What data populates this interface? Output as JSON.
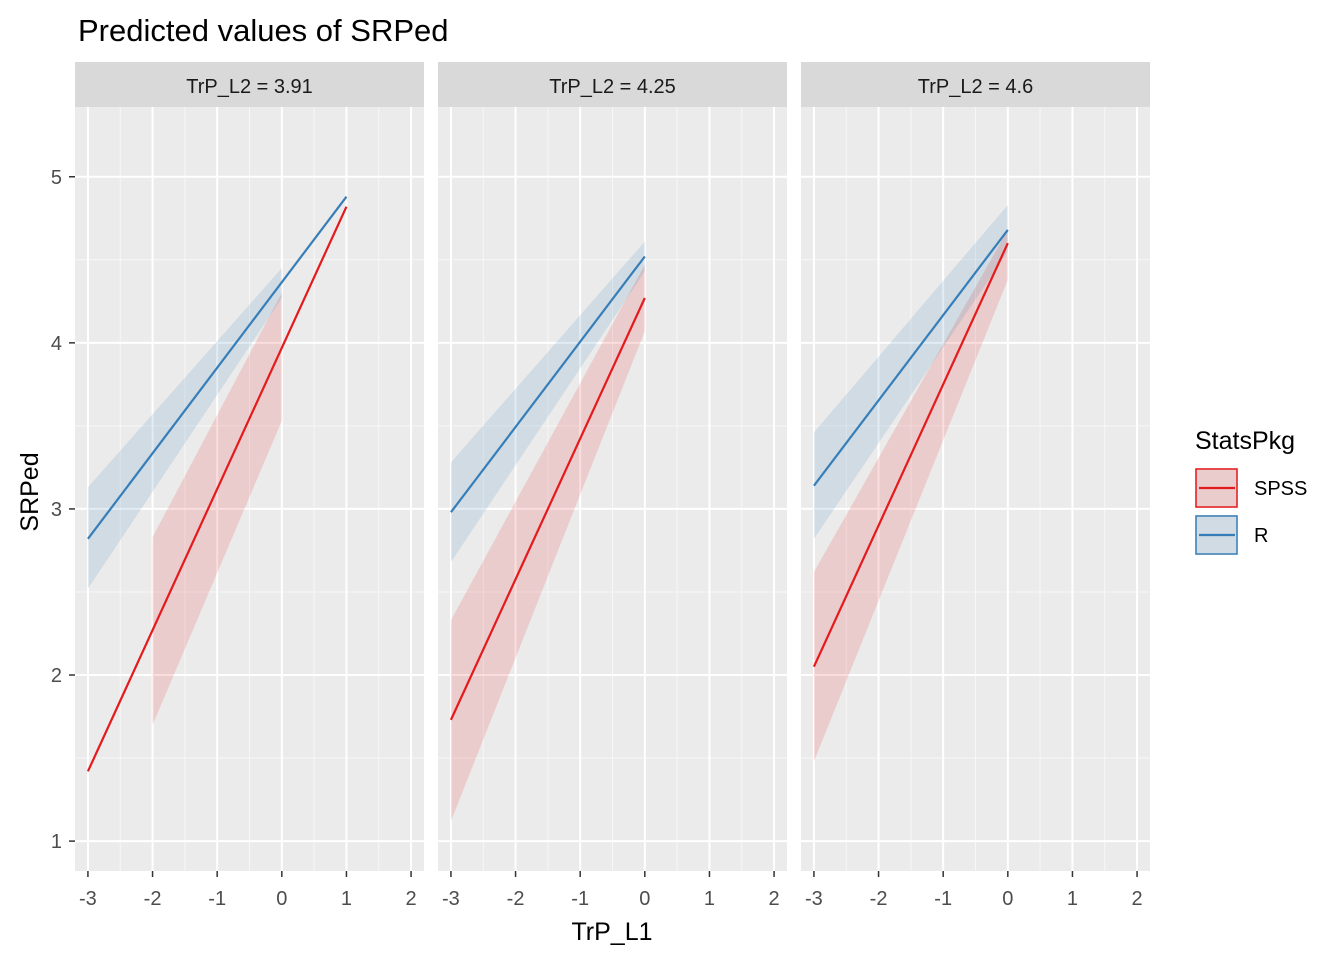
{
  "chart_data": {
    "type": "line",
    "title": "Predicted values of SRPed",
    "xlabel": "TrP_L1",
    "ylabel": "SRPed",
    "xlim": [
      -3.2,
      2.2
    ],
    "ylim": [
      0.82,
      5.42
    ],
    "x_ticks": [
      -3,
      -2,
      -1,
      0,
      1,
      2
    ],
    "x_tick_labels": [
      "-3",
      "-2",
      "-1",
      "0",
      "1",
      "2"
    ],
    "y_ticks": [
      1,
      2,
      3,
      4,
      5
    ],
    "y_tick_labels": [
      "1",
      "2",
      "3",
      "4",
      "5"
    ],
    "grid": true,
    "legend": {
      "title": "StatsPkg",
      "position": "right",
      "entries": [
        {
          "label": "SPSS",
          "color": "#e41a1c"
        },
        {
          "label": "R",
          "color": "#377eb8"
        }
      ]
    },
    "facets": [
      {
        "label": "TrP_L2 = 3.91",
        "series": [
          {
            "name": "SPSS",
            "color": "#e41a1c",
            "line": [
              [
                -3,
                1.42
              ],
              [
                1,
                4.82
              ]
            ],
            "ribbon": [
              [
                -2,
                1.7,
                2.83
              ],
              [
                0,
                3.53,
                4.3
              ]
            ]
          },
          {
            "name": "R",
            "color": "#377eb8",
            "line": [
              [
                -3,
                2.82
              ],
              [
                1,
                4.88
              ]
            ],
            "ribbon": [
              [
                -3,
                2.52,
                3.13
              ],
              [
                0,
                4.27,
                4.45
              ]
            ]
          }
        ]
      },
      {
        "label": "TrP_L2 = 4.25",
        "series": [
          {
            "name": "SPSS",
            "color": "#e41a1c",
            "line": [
              [
                -3,
                1.73
              ],
              [
                0,
                4.27
              ]
            ],
            "ribbon": [
              [
                -3,
                1.12,
                2.33
              ],
              [
                0,
                4.07,
                4.47
              ]
            ]
          },
          {
            "name": "R",
            "color": "#377eb8",
            "line": [
              [
                -3,
                2.98
              ],
              [
                0,
                4.52
              ]
            ],
            "ribbon": [
              [
                -3,
                2.68,
                3.28
              ],
              [
                0,
                4.43,
                4.61
              ]
            ]
          }
        ]
      },
      {
        "label": "TrP_L2 = 4.6",
        "series": [
          {
            "name": "SPSS",
            "color": "#e41a1c",
            "line": [
              [
                -3,
                2.05
              ],
              [
                0,
                4.6
              ]
            ],
            "ribbon": [
              [
                -3,
                1.48,
                2.62
              ],
              [
                0,
                4.38,
                4.68
              ]
            ]
          },
          {
            "name": "R",
            "color": "#377eb8",
            "line": [
              [
                -3,
                3.14
              ],
              [
                0,
                4.68
              ]
            ],
            "ribbon": [
              [
                -3,
                2.82,
                3.46
              ],
              [
                0,
                4.55,
                4.83
              ]
            ]
          }
        ]
      }
    ]
  }
}
